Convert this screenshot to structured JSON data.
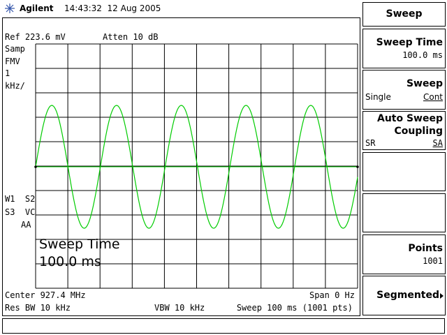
{
  "header": {
    "brand": "Agilent",
    "timestamp": "14:43:32  12 Aug 2005"
  },
  "display": {
    "ref": "Ref 223.6 mV",
    "atten": "Atten 10 dB",
    "left_annotations": [
      "Samp",
      "FMV",
      "1",
      "kHz/"
    ],
    "trace_annotations": [
      "W1  S2",
      "S3  VC",
      "AA"
    ],
    "active_function": {
      "label": "Sweep Time",
      "value": "100.0 ms"
    },
    "center": "Center 927.4 MHz",
    "span": "Span 0 Hz",
    "res_bw": "Res BW 10 kHz",
    "vbw": "VBW 10 kHz",
    "sweep": "Sweep 100 ms (1001 pts)"
  },
  "menu": {
    "title": "Sweep",
    "sweep_time": {
      "label": "Sweep Time",
      "value": "100.0 ms"
    },
    "sweep_mode": {
      "label": "Sweep",
      "options": [
        "Single",
        "Cont"
      ]
    },
    "auto_sweep": {
      "label": [
        "Auto Sweep",
        "Coupling"
      ],
      "options": [
        "SR",
        "SA"
      ]
    },
    "points": {
      "label": "Points",
      "value": "1001"
    },
    "segmented": {
      "label": "Segmented"
    }
  }
}
